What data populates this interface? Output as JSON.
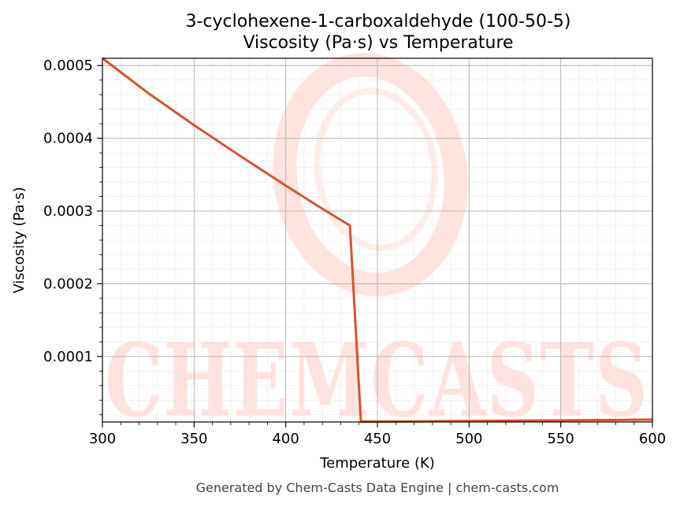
{
  "chart_data": {
    "type": "line",
    "title_line1": "3-cyclohexene-1-carboxaldehyde (100-50-5)",
    "title_line2": "Viscosity (Pa·s) vs Temperature",
    "xlabel": "Temperature (K)",
    "ylabel": "Viscosity (Pa·s)",
    "xlim": [
      300,
      600
    ],
    "ylim": [
      1e-05,
      0.00051
    ],
    "x_ticks": [
      300,
      350,
      400,
      450,
      500,
      550,
      600
    ],
    "x_tick_labels": [
      "300",
      "350",
      "400",
      "450",
      "500",
      "550",
      "600"
    ],
    "y_ticks": [
      0.0001,
      0.0002,
      0.0003,
      0.0004,
      0.0005
    ],
    "y_tick_labels": [
      "0.0001",
      "0.0002",
      "0.0003",
      "0.0004",
      "0.0005"
    ],
    "grid": true,
    "series": [
      {
        "color": "#d4552a",
        "x": [
          300,
          325,
          350,
          375,
          400,
          420,
          435,
          441,
          450,
          500,
          550,
          600
        ],
        "y": [
          0.00051,
          0.000462,
          0.000418,
          0.000376,
          0.000335,
          0.000303,
          0.00028,
          1.05e-05,
          1.05e-05,
          1.13e-05,
          1.22e-05,
          1.32e-05
        ]
      }
    ]
  },
  "watermark": {
    "text": "CHEMCASTS"
  },
  "footer": "Generated by Chem-Casts Data Engine | chem-casts.com"
}
